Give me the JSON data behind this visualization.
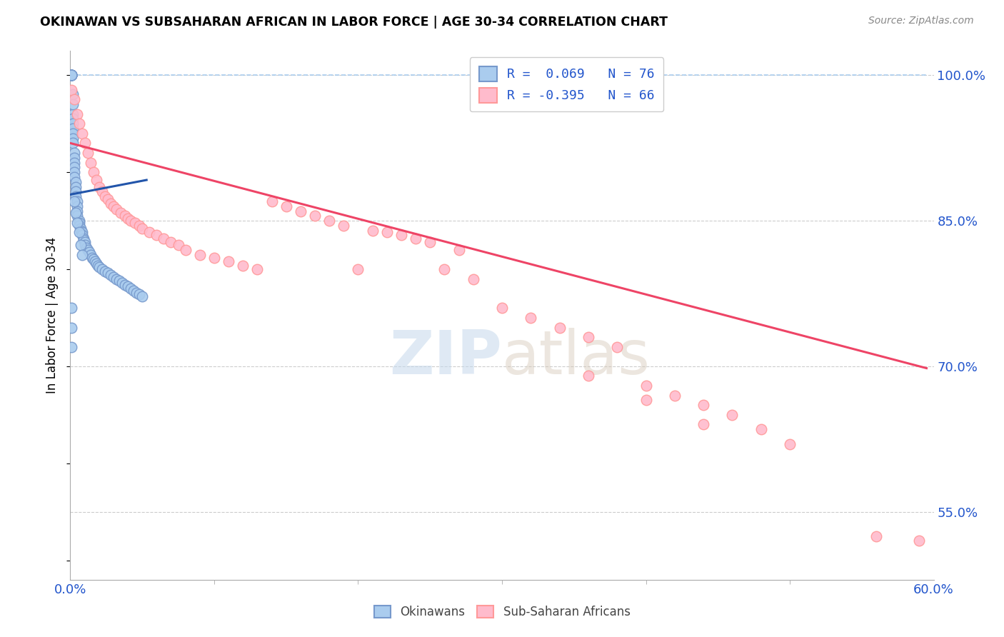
{
  "title": "OKINAWAN VS SUBSAHARAN AFRICAN IN LABOR FORCE | AGE 30-34 CORRELATION CHART",
  "source_text": "Source: ZipAtlas.com",
  "ylabel": "In Labor Force | Age 30-34",
  "xmin": 0.0,
  "xmax": 0.6,
  "ymin": 0.48,
  "ymax": 1.025,
  "xtick_left_label": "0.0%",
  "xtick_right_label": "60.0%",
  "ytick_labels": [
    "100.0%",
    "85.0%",
    "70.0%",
    "55.0%"
  ],
  "ytick_vals": [
    1.0,
    0.85,
    0.7,
    0.55
  ],
  "grid_color": "#cccccc",
  "blue_color": "#7799cc",
  "pink_color": "#ff9999",
  "blue_face": "#aaccee",
  "pink_face": "#ffbbcc",
  "legend_line1": "R =  0.069   N = 76",
  "legend_line2": "R = -0.395   N = 66",
  "watermark_zip": "ZIP",
  "watermark_atlas": "atlas",
  "okinawan_x": [
    0.001,
    0.001,
    0.001,
    0.001,
    0.001,
    0.001,
    0.001,
    0.001,
    0.002,
    0.002,
    0.002,
    0.002,
    0.002,
    0.002,
    0.002,
    0.003,
    0.003,
    0.003,
    0.003,
    0.003,
    0.003,
    0.004,
    0.004,
    0.004,
    0.004,
    0.005,
    0.005,
    0.005,
    0.005,
    0.006,
    0.006,
    0.006,
    0.007,
    0.007,
    0.008,
    0.008,
    0.009,
    0.009,
    0.01,
    0.01,
    0.011,
    0.012,
    0.013,
    0.014,
    0.015,
    0.016,
    0.017,
    0.018,
    0.019,
    0.02,
    0.022,
    0.024,
    0.026,
    0.028,
    0.03,
    0.032,
    0.034,
    0.036,
    0.038,
    0.04,
    0.042,
    0.044,
    0.046,
    0.048,
    0.05,
    0.001,
    0.001,
    0.001,
    0.002,
    0.002,
    0.003,
    0.004,
    0.005,
    0.006,
    0.007,
    0.008
  ],
  "okinawan_y": [
    1.0,
    1.0,
    1.0,
    1.0,
    1.0,
    1.0,
    1.0,
    1.0,
    0.96,
    0.955,
    0.95,
    0.945,
    0.94,
    0.935,
    0.93,
    0.92,
    0.915,
    0.91,
    0.905,
    0.9,
    0.895,
    0.89,
    0.885,
    0.88,
    0.875,
    0.87,
    0.865,
    0.86,
    0.855,
    0.85,
    0.848,
    0.845,
    0.842,
    0.84,
    0.838,
    0.835,
    0.832,
    0.83,
    0.828,
    0.825,
    0.822,
    0.82,
    0.818,
    0.815,
    0.812,
    0.81,
    0.808,
    0.806,
    0.804,
    0.802,
    0.8,
    0.798,
    0.796,
    0.794,
    0.792,
    0.79,
    0.788,
    0.786,
    0.784,
    0.782,
    0.78,
    0.778,
    0.776,
    0.774,
    0.772,
    0.76,
    0.74,
    0.72,
    0.98,
    0.97,
    0.87,
    0.858,
    0.848,
    0.838,
    0.825,
    0.815
  ],
  "subsaharan_x": [
    0.001,
    0.003,
    0.005,
    0.006,
    0.008,
    0.01,
    0.012,
    0.014,
    0.016,
    0.018,
    0.02,
    0.022,
    0.024,
    0.026,
    0.028,
    0.03,
    0.032,
    0.035,
    0.038,
    0.04,
    0.042,
    0.045,
    0.048,
    0.05,
    0.055,
    0.06,
    0.065,
    0.07,
    0.075,
    0.08,
    0.09,
    0.1,
    0.11,
    0.12,
    0.13,
    0.14,
    0.15,
    0.16,
    0.17,
    0.18,
    0.19,
    0.2,
    0.21,
    0.22,
    0.23,
    0.24,
    0.25,
    0.26,
    0.27,
    0.28,
    0.3,
    0.32,
    0.34,
    0.36,
    0.38,
    0.4,
    0.42,
    0.44,
    0.46,
    0.48,
    0.36,
    0.4,
    0.44,
    0.5,
    0.56,
    0.59
  ],
  "subsaharan_y": [
    0.985,
    0.975,
    0.96,
    0.95,
    0.94,
    0.93,
    0.92,
    0.91,
    0.9,
    0.892,
    0.885,
    0.88,
    0.875,
    0.872,
    0.868,
    0.865,
    0.862,
    0.858,
    0.855,
    0.852,
    0.85,
    0.848,
    0.845,
    0.842,
    0.838,
    0.835,
    0.832,
    0.828,
    0.825,
    0.82,
    0.815,
    0.812,
    0.808,
    0.804,
    0.8,
    0.87,
    0.865,
    0.86,
    0.855,
    0.85,
    0.845,
    0.8,
    0.84,
    0.838,
    0.835,
    0.832,
    0.828,
    0.8,
    0.82,
    0.79,
    0.76,
    0.75,
    0.74,
    0.73,
    0.72,
    0.68,
    0.67,
    0.66,
    0.65,
    0.635,
    0.69,
    0.665,
    0.64,
    0.62,
    0.525,
    0.52
  ],
  "blue_trendline_x": [
    0.0,
    0.053
  ],
  "blue_trendline_y": [
    0.877,
    0.892
  ],
  "pink_trendline_x": [
    0.0,
    0.595
  ],
  "pink_trendline_y": [
    0.93,
    0.698
  ],
  "diag_line_x": [
    0.0,
    0.595
  ],
  "diag_line_y": [
    1.0,
    1.0
  ]
}
